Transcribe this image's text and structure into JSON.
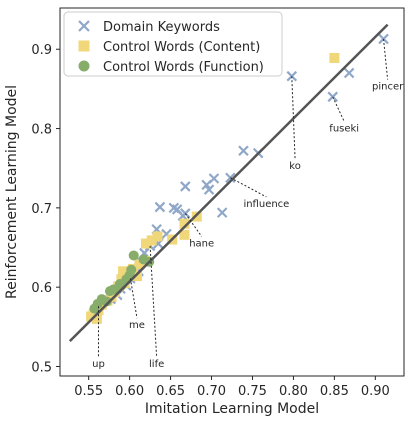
{
  "chart_data": {
    "type": "scatter",
    "xlabel": "Imitation Learning Model",
    "ylabel": "Reinforcement Learning Model",
    "xlim": [
      0.515,
      0.935
    ],
    "ylim": [
      0.488,
      0.952
    ],
    "xticks": [
      0.55,
      0.6,
      0.65,
      0.7,
      0.75,
      0.8,
      0.85,
      0.9
    ],
    "xtick_labels": [
      "0.55",
      "0.60",
      "0.65",
      "0.70",
      "0.75",
      "0.80",
      "0.85",
      "0.90"
    ],
    "yticks": [
      0.5,
      0.6,
      0.7,
      0.8,
      0.9
    ],
    "ytick_labels": [
      "0.5",
      "0.6",
      "0.7",
      "0.8",
      "0.9"
    ],
    "grid": false,
    "legend_position": "top-left",
    "trend_line": {
      "x": [
        0.527,
        0.915
      ],
      "y": [
        0.532,
        0.931
      ],
      "color": "#555555"
    },
    "series": [
      {
        "name": "Domain Keywords",
        "marker": "x",
        "color": "#8fa7c8",
        "points": [
          [
            0.91,
            0.913
          ],
          [
            0.868,
            0.87
          ],
          [
            0.848,
            0.84
          ],
          [
            0.798,
            0.866
          ],
          [
            0.757,
            0.769
          ],
          [
            0.739,
            0.772
          ],
          [
            0.723,
            0.738
          ],
          [
            0.713,
            0.694
          ],
          [
            0.703,
            0.737
          ],
          [
            0.697,
            0.723
          ],
          [
            0.694,
            0.729
          ],
          [
            0.668,
            0.727
          ],
          [
            0.668,
            0.693
          ],
          [
            0.658,
            0.698
          ],
          [
            0.654,
            0.7
          ],
          [
            0.637,
            0.701
          ],
          [
            0.633,
            0.673
          ],
          [
            0.635,
            0.655
          ],
          [
            0.629,
            0.659
          ],
          [
            0.625,
            0.652
          ],
          [
            0.618,
            0.643
          ],
          [
            0.612,
            0.634
          ],
          [
            0.605,
            0.616
          ],
          [
            0.601,
            0.611
          ],
          [
            0.596,
            0.602
          ],
          [
            0.589,
            0.598
          ],
          [
            0.585,
            0.59
          ],
          [
            0.577,
            0.585
          ],
          [
            0.57,
            0.583
          ],
          [
            0.562,
            0.576
          ],
          [
            0.558,
            0.571
          ],
          [
            0.665,
            0.69
          ],
          [
            0.645,
            0.667
          ],
          [
            0.611,
            0.62
          ]
        ]
      },
      {
        "name": "Control Words (Content)",
        "marker": "s",
        "color": "#f0d77a",
        "points": [
          [
            0.85,
            0.889
          ],
          [
            0.682,
            0.689
          ],
          [
            0.667,
            0.666
          ],
          [
            0.667,
            0.68
          ],
          [
            0.652,
            0.66
          ],
          [
            0.634,
            0.664
          ],
          [
            0.627,
            0.659
          ],
          [
            0.62,
            0.655
          ],
          [
            0.618,
            0.633
          ],
          [
            0.612,
            0.629
          ],
          [
            0.604,
            0.623
          ],
          [
            0.6,
            0.619
          ],
          [
            0.592,
            0.62
          ],
          [
            0.59,
            0.61
          ],
          [
            0.586,
            0.601
          ],
          [
            0.582,
            0.594
          ],
          [
            0.578,
            0.588
          ],
          [
            0.573,
            0.583
          ],
          [
            0.566,
            0.578
          ],
          [
            0.562,
            0.571
          ],
          [
            0.556,
            0.566
          ],
          [
            0.553,
            0.563
          ],
          [
            0.56,
            0.56
          ],
          [
            0.594,
            0.605
          ],
          [
            0.609,
            0.614
          ]
        ]
      },
      {
        "name": "Control Words (Function)",
        "marker": "o",
        "color": "#88ad6a",
        "points": [
          [
            0.624,
            0.632
          ],
          [
            0.617,
            0.635
          ],
          [
            0.605,
            0.64
          ],
          [
            0.602,
            0.622
          ],
          [
            0.596,
            0.61
          ],
          [
            0.59,
            0.602
          ],
          [
            0.585,
            0.598
          ],
          [
            0.58,
            0.597
          ],
          [
            0.576,
            0.595
          ],
          [
            0.572,
            0.582
          ],
          [
            0.566,
            0.585
          ],
          [
            0.561,
            0.579
          ],
          [
            0.557,
            0.573
          ],
          [
            0.6,
            0.615
          ],
          [
            0.588,
            0.604
          ]
        ]
      }
    ],
    "annotations": [
      {
        "text": "pincer",
        "point": [
          0.91,
          0.913
        ],
        "text_at": [
          0.915,
          0.853
        ]
      },
      {
        "text": "fuseki",
        "point": [
          0.848,
          0.84
        ],
        "text_at": [
          0.862,
          0.8
        ]
      },
      {
        "text": "ko",
        "point": [
          0.798,
          0.866
        ],
        "text_at": [
          0.802,
          0.753
        ]
      },
      {
        "text": "influence",
        "point": [
          0.723,
          0.738
        ],
        "text_at": [
          0.767,
          0.705
        ]
      },
      {
        "text": "hane",
        "point": [
          0.668,
          0.693
        ],
        "text_at": [
          0.688,
          0.655
        ]
      },
      {
        "text": "life",
        "point": [
          0.625,
          0.652
        ],
        "text_at": [
          0.633,
          0.503
        ]
      },
      {
        "text": "me",
        "point": [
          0.601,
          0.611
        ],
        "text_at": [
          0.609,
          0.552
        ]
      },
      {
        "text": "up",
        "point": [
          0.562,
          0.576
        ],
        "text_at": [
          0.562,
          0.503
        ]
      }
    ]
  }
}
